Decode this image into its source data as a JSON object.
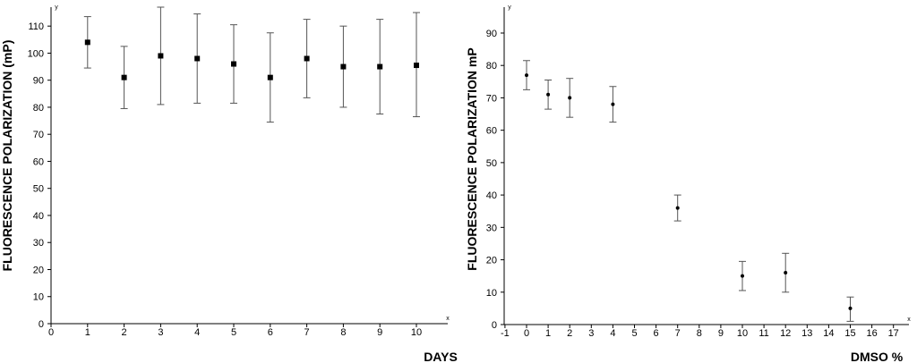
{
  "chart_data": [
    {
      "type": "scatter",
      "ylabel": "FLUORESCENCE POLARIZATION  (mP)",
      "xlabel": "DAYS",
      "x_axis_letter": "x",
      "y_axis_letter": "y",
      "xlim": [
        0,
        10.9
      ],
      "ylim": [
        0,
        117
      ],
      "x_ticks": [
        0,
        1,
        2,
        3,
        4,
        5,
        6,
        7,
        8,
        9,
        10
      ],
      "y_ticks": [
        0,
        10,
        20,
        30,
        40,
        50,
        60,
        70,
        80,
        90,
        100,
        110
      ],
      "marker": "square",
      "grid": false,
      "points": [
        {
          "x": 1,
          "y": 104,
          "err_low": 94.5,
          "err_high": 113.5
        },
        {
          "x": 2,
          "y": 91,
          "err_low": 79.5,
          "err_high": 102.5
        },
        {
          "x": 3,
          "y": 99,
          "err_low": 81,
          "err_high": 117
        },
        {
          "x": 4,
          "y": 98,
          "err_low": 81.5,
          "err_high": 114.5
        },
        {
          "x": 5,
          "y": 96,
          "err_low": 81.5,
          "err_high": 110.5
        },
        {
          "x": 6,
          "y": 91,
          "err_low": 74.5,
          "err_high": 107.5
        },
        {
          "x": 7,
          "y": 98,
          "err_low": 83.5,
          "err_high": 112.5
        },
        {
          "x": 8,
          "y": 95,
          "err_low": 80,
          "err_high": 110
        },
        {
          "x": 9,
          "y": 95,
          "err_low": 77.5,
          "err_high": 112.5
        },
        {
          "x": 10,
          "y": 95.5,
          "err_low": 76.5,
          "err_high": 115
        }
      ]
    },
    {
      "type": "scatter",
      "ylabel": "FLUORESCENCE POLARIZATION  mP",
      "xlabel": "DMSO %",
      "x_axis_letter": "x",
      "y_axis_letter": "y",
      "xlim": [
        -1,
        18.2
      ],
      "ylim": [
        0,
        98
      ],
      "x_ticks": [
        -1,
        0,
        1,
        2,
        3,
        4,
        5,
        6,
        7,
        8,
        9,
        10,
        11,
        12,
        13,
        14,
        15,
        16,
        17
      ],
      "y_ticks": [
        0,
        10,
        20,
        30,
        40,
        50,
        60,
        70,
        80,
        90
      ],
      "marker": "dot",
      "grid": false,
      "points": [
        {
          "x": 0,
          "y": 77,
          "err_low": 72.5,
          "err_high": 81.5
        },
        {
          "x": 1,
          "y": 71,
          "err_low": 66.5,
          "err_high": 75.5
        },
        {
          "x": 2,
          "y": 70,
          "err_low": 64,
          "err_high": 76
        },
        {
          "x": 4,
          "y": 68,
          "err_low": 62.5,
          "err_high": 73.5
        },
        {
          "x": 7,
          "y": 36,
          "err_low": 32,
          "err_high": 40
        },
        {
          "x": 10,
          "y": 15,
          "err_low": 10.5,
          "err_high": 19.5
        },
        {
          "x": 12,
          "y": 16,
          "err_low": 10,
          "err_high": 22
        },
        {
          "x": 15,
          "y": 5,
          "err_low": 1,
          "err_high": 8.5
        }
      ]
    }
  ]
}
